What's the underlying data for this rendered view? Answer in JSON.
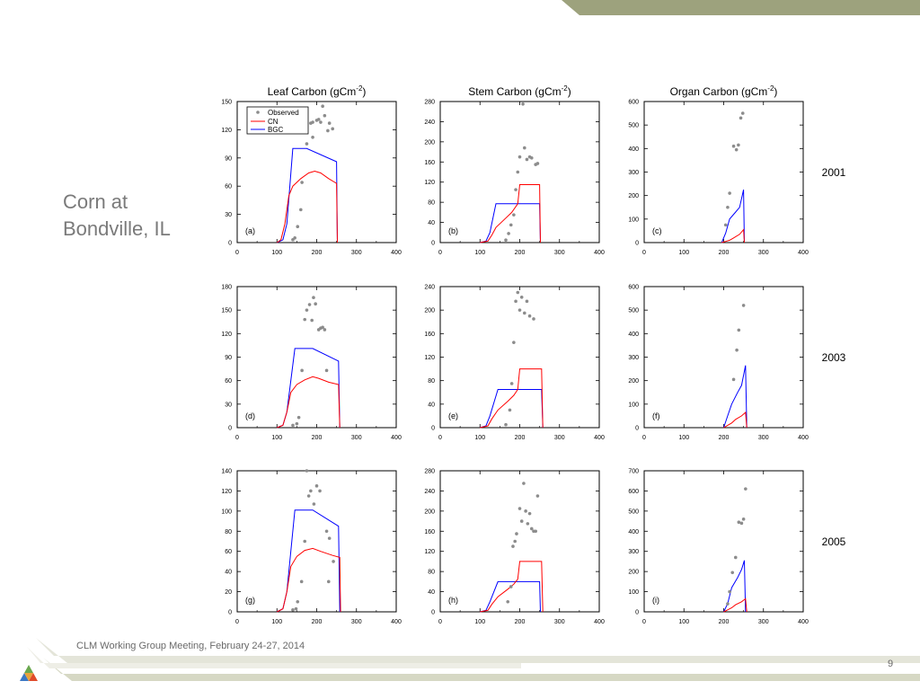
{
  "slide": {
    "title_line1": "Corn at",
    "title_line2": "Bondville, IL",
    "footer": "CLM Working Group Meeting, February 24-27, 2014",
    "page_number": "9",
    "colors": {
      "band": "#9da27d",
      "band_light": "#d9dac9",
      "text": "#7a7a7a"
    }
  },
  "chart_data": {
    "type": "line",
    "columns": [
      "Leaf Carbon (gCm",
      "Stem Carbon (gCm",
      "Organ Carbon (gCm"
    ],
    "column_title_suffix": ")",
    "column_title_superscript": "-2",
    "rows": [
      "2001",
      "2003",
      "2005"
    ],
    "legend": {
      "observed": "Observed",
      "cn": "CN",
      "bgc": "BGC"
    },
    "colors": {
      "cn": "#ff0000",
      "bgc": "#0000ff",
      "observed": "#8c8c8c"
    },
    "xlim": [
      0,
      400
    ],
    "xticks": [
      0,
      100,
      200,
      300,
      400
    ],
    "panels": [
      {
        "label": "(a)",
        "ylim": [
          0,
          150
        ],
        "yticks": [
          0,
          30,
          60,
          90,
          120,
          150
        ],
        "cn": [
          [
            100,
            0
          ],
          [
            110,
            3
          ],
          [
            120,
            20
          ],
          [
            130,
            50
          ],
          [
            140,
            60
          ],
          [
            160,
            68
          ],
          [
            180,
            74
          ],
          [
            195,
            76
          ],
          [
            210,
            74
          ],
          [
            230,
            68
          ],
          [
            250,
            63
          ],
          [
            252,
            0
          ]
        ],
        "bgc": [
          [
            100,
            0
          ],
          [
            115,
            3
          ],
          [
            125,
            20
          ],
          [
            140,
            100
          ],
          [
            175,
            100
          ],
          [
            250,
            86
          ],
          [
            252,
            0
          ]
        ],
        "observed": [
          [
            140,
            3
          ],
          [
            145,
            5
          ],
          [
            152,
            17
          ],
          [
            160,
            35
          ],
          [
            163,
            64
          ],
          [
            175,
            105
          ],
          [
            185,
            127
          ],
          [
            190,
            128
          ],
          [
            200,
            130
          ],
          [
            205,
            131
          ],
          [
            210,
            128
          ],
          [
            215,
            145
          ],
          [
            220,
            135
          ],
          [
            228,
            119
          ],
          [
            232,
            127
          ],
          [
            240,
            121
          ],
          [
            190,
            112
          ]
        ]
      },
      {
        "label": "(b)",
        "ylim": [
          0,
          280
        ],
        "yticks": [
          0,
          40,
          80,
          120,
          160,
          200,
          240,
          280
        ],
        "cn": [
          [
            100,
            0
          ],
          [
            120,
            3
          ],
          [
            130,
            15
          ],
          [
            140,
            30
          ],
          [
            160,
            45
          ],
          [
            180,
            60
          ],
          [
            195,
            77
          ],
          [
            200,
            115
          ],
          [
            250,
            115
          ],
          [
            252,
            0
          ]
        ],
        "bgc": [
          [
            100,
            0
          ],
          [
            115,
            3
          ],
          [
            125,
            20
          ],
          [
            140,
            77
          ],
          [
            250,
            77
          ],
          [
            252,
            0
          ]
        ],
        "observed": [
          [
            165,
            5
          ],
          [
            172,
            18
          ],
          [
            178,
            35
          ],
          [
            185,
            55
          ],
          [
            190,
            105
          ],
          [
            195,
            140
          ],
          [
            200,
            170
          ],
          [
            208,
            275
          ],
          [
            212,
            188
          ],
          [
            218,
            165
          ],
          [
            225,
            170
          ],
          [
            230,
            168
          ],
          [
            240,
            155
          ],
          [
            245,
            157
          ]
        ]
      },
      {
        "label": "(c)",
        "ylim": [
          0,
          600
        ],
        "yticks": [
          0,
          100,
          200,
          300,
          400,
          500,
          600
        ],
        "cn": [
          [
            195,
            0
          ],
          [
            205,
            5
          ],
          [
            215,
            10
          ],
          [
            225,
            20
          ],
          [
            240,
            35
          ],
          [
            250,
            55
          ],
          [
            252,
            0
          ]
        ],
        "bgc": [
          [
            195,
            0
          ],
          [
            205,
            40
          ],
          [
            215,
            100
          ],
          [
            230,
            130
          ],
          [
            240,
            150
          ],
          [
            250,
            225
          ],
          [
            252,
            0
          ]
        ],
        "observed": [
          [
            205,
            75
          ],
          [
            210,
            150
          ],
          [
            215,
            210
          ],
          [
            225,
            410
          ],
          [
            232,
            395
          ],
          [
            237,
            415
          ],
          [
            243,
            530
          ],
          [
            248,
            550
          ]
        ]
      },
      {
        "label": "(d)",
        "ylim": [
          0,
          180
        ],
        "yticks": [
          0,
          30,
          60,
          90,
          120,
          150,
          180
        ],
        "cn": [
          [
            100,
            0
          ],
          [
            115,
            3
          ],
          [
            125,
            20
          ],
          [
            135,
            45
          ],
          [
            150,
            55
          ],
          [
            170,
            61
          ],
          [
            190,
            65
          ],
          [
            205,
            63
          ],
          [
            230,
            58
          ],
          [
            255,
            55
          ],
          [
            258,
            0
          ]
        ],
        "bgc": [
          [
            100,
            0
          ],
          [
            115,
            3
          ],
          [
            125,
            20
          ],
          [
            145,
            101
          ],
          [
            190,
            101
          ],
          [
            255,
            85
          ],
          [
            258,
            0
          ]
        ],
        "observed": [
          [
            140,
            3
          ],
          [
            150,
            5
          ],
          [
            155,
            13
          ],
          [
            163,
            73
          ],
          [
            175,
            150
          ],
          [
            182,
            157
          ],
          [
            188,
            137
          ],
          [
            192,
            166
          ],
          [
            197,
            158
          ],
          [
            205,
            125
          ],
          [
            210,
            127
          ],
          [
            215,
            128
          ],
          [
            220,
            125
          ],
          [
            225,
            73
          ],
          [
            170,
            138
          ]
        ]
      },
      {
        "label": "(e)",
        "ylim": [
          0,
          240
        ],
        "yticks": [
          0,
          40,
          80,
          120,
          160,
          200,
          240
        ],
        "cn": [
          [
            100,
            0
          ],
          [
            120,
            3
          ],
          [
            130,
            15
          ],
          [
            145,
            30
          ],
          [
            170,
            45
          ],
          [
            185,
            55
          ],
          [
            195,
            65
          ],
          [
            200,
            100
          ],
          [
            255,
            100
          ],
          [
            258,
            0
          ]
        ],
        "bgc": [
          [
            100,
            0
          ],
          [
            115,
            3
          ],
          [
            125,
            20
          ],
          [
            145,
            65
          ],
          [
            255,
            65
          ],
          [
            258,
            0
          ]
        ],
        "observed": [
          [
            165,
            5
          ],
          [
            175,
            30
          ],
          [
            180,
            75
          ],
          [
            185,
            145
          ],
          [
            190,
            215
          ],
          [
            195,
            230
          ],
          [
            200,
            200
          ],
          [
            205,
            222
          ],
          [
            212,
            195
          ],
          [
            218,
            215
          ],
          [
            225,
            190
          ],
          [
            235,
            185
          ]
        ]
      },
      {
        "label": "(f)",
        "ylim": [
          0,
          600
        ],
        "yticks": [
          0,
          100,
          200,
          300,
          400,
          500,
          600
        ],
        "cn": [
          [
            200,
            0
          ],
          [
            210,
            10
          ],
          [
            220,
            20
          ],
          [
            230,
            35
          ],
          [
            245,
            50
          ],
          [
            255,
            65
          ],
          [
            258,
            0
          ]
        ],
        "bgc": [
          [
            200,
            0
          ],
          [
            210,
            50
          ],
          [
            220,
            100
          ],
          [
            235,
            150
          ],
          [
            245,
            180
          ],
          [
            255,
            265
          ],
          [
            258,
            0
          ]
        ],
        "observed": [
          [
            225,
            205
          ],
          [
            233,
            330
          ],
          [
            238,
            415
          ],
          [
            250,
            520
          ]
        ]
      },
      {
        "label": "(g)",
        "ylim": [
          0,
          140
        ],
        "yticks": [
          0,
          20,
          40,
          60,
          80,
          100,
          120,
          140
        ],
        "cn": [
          [
            100,
            0
          ],
          [
            115,
            3
          ],
          [
            125,
            20
          ],
          [
            135,
            45
          ],
          [
            150,
            55
          ],
          [
            170,
            61
          ],
          [
            190,
            63
          ],
          [
            210,
            60
          ],
          [
            240,
            56
          ],
          [
            258,
            54
          ],
          [
            260,
            0
          ]
        ],
        "bgc": [
          [
            100,
            0
          ],
          [
            115,
            3
          ],
          [
            125,
            20
          ],
          [
            145,
            101
          ],
          [
            190,
            101
          ],
          [
            255,
            85
          ],
          [
            258,
            0
          ]
        ],
        "observed": [
          [
            140,
            2
          ],
          [
            148,
            3
          ],
          [
            152,
            10
          ],
          [
            162,
            30
          ],
          [
            170,
            70
          ],
          [
            180,
            115
          ],
          [
            185,
            120
          ],
          [
            193,
            107
          ],
          [
            200,
            125
          ],
          [
            208,
            120
          ],
          [
            225,
            80
          ],
          [
            232,
            73
          ],
          [
            242,
            50
          ],
          [
            175,
            140
          ],
          [
            230,
            30
          ]
        ]
      },
      {
        "label": "(h)",
        "ylim": [
          0,
          280
        ],
        "yticks": [
          0,
          40,
          80,
          120,
          160,
          200,
          240,
          280
        ],
        "cn": [
          [
            100,
            0
          ],
          [
            120,
            3
          ],
          [
            130,
            15
          ],
          [
            145,
            30
          ],
          [
            170,
            45
          ],
          [
            185,
            55
          ],
          [
            195,
            65
          ],
          [
            200,
            100
          ],
          [
            255,
            100
          ],
          [
            258,
            0
          ]
        ],
        "bgc": [
          [
            100,
            0
          ],
          [
            115,
            3
          ],
          [
            125,
            20
          ],
          [
            145,
            60
          ],
          [
            250,
            60
          ],
          [
            252,
            0
          ]
        ],
        "observed": [
          [
            170,
            20
          ],
          [
            178,
            50
          ],
          [
            183,
            130
          ],
          [
            188,
            140
          ],
          [
            192,
            155
          ],
          [
            200,
            205
          ],
          [
            205,
            180
          ],
          [
            210,
            255
          ],
          [
            215,
            200
          ],
          [
            220,
            175
          ],
          [
            225,
            195
          ],
          [
            230,
            165
          ],
          [
            235,
            160
          ],
          [
            240,
            160
          ],
          [
            245,
            230
          ]
        ]
      },
      {
        "label": "(i)",
        "ylim": [
          0,
          700
        ],
        "yticks": [
          0,
          100,
          200,
          300,
          400,
          500,
          600,
          700
        ],
        "cn": [
          [
            200,
            0
          ],
          [
            210,
            10
          ],
          [
            220,
            20
          ],
          [
            230,
            35
          ],
          [
            245,
            50
          ],
          [
            255,
            65
          ],
          [
            258,
            0
          ]
        ],
        "bgc": [
          [
            200,
            0
          ],
          [
            210,
            40
          ],
          [
            220,
            120
          ],
          [
            235,
            170
          ],
          [
            245,
            210
          ],
          [
            252,
            255
          ],
          [
            255,
            0
          ]
        ],
        "observed": [
          [
            210,
            40
          ],
          [
            215,
            100
          ],
          [
            222,
            195
          ],
          [
            230,
            270
          ],
          [
            238,
            445
          ],
          [
            245,
            440
          ],
          [
            250,
            460
          ],
          [
            255,
            610
          ]
        ]
      }
    ]
  }
}
